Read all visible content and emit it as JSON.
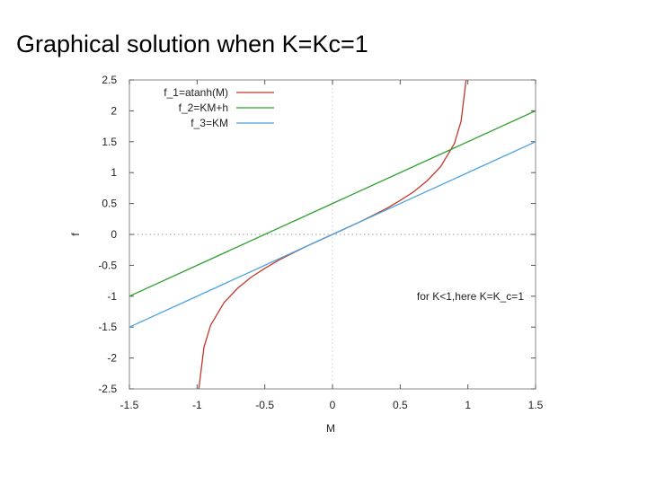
{
  "slide": {
    "title": "Graphical solution when K=Kc=1"
  },
  "chart_data": {
    "type": "line",
    "title": "",
    "xlabel": "M",
    "ylabel": "f",
    "xlim": [
      -1.5,
      1.5
    ],
    "ylim": [
      -2.5,
      2.5
    ],
    "xticks": [
      "-1.5",
      "-1",
      "-0.5",
      "0",
      "0.5",
      "1",
      "1.5"
    ],
    "xtick_values": [
      -1.5,
      -1,
      -0.5,
      0,
      0.5,
      1,
      1.5
    ],
    "yticks": [
      "2.5",
      "2",
      "1.5",
      "1",
      "0.5",
      "0",
      "-0.5",
      "-1",
      "-1.5",
      "-2",
      "-2.5"
    ],
    "ytick_values": [
      2.5,
      2,
      1.5,
      1,
      0.5,
      0,
      -0.5,
      -1,
      -1.5,
      -2,
      -2.5
    ],
    "grid": false,
    "zero_lines": true,
    "legend_position": "top-left",
    "series": [
      {
        "name": "f_1=atanh(M)",
        "color": "#c0392b",
        "x": [
          -0.987,
          -0.95,
          -0.9,
          -0.8,
          -0.7,
          -0.6,
          -0.5,
          -0.4,
          -0.3,
          -0.2,
          -0.1,
          0,
          0.1,
          0.2,
          0.3,
          0.4,
          0.5,
          0.6,
          0.7,
          0.8,
          0.9,
          0.95,
          0.987
        ],
        "y": [
          -2.5,
          -1.83,
          -1.47,
          -1.1,
          -0.87,
          -0.69,
          -0.55,
          -0.42,
          -0.31,
          -0.2,
          -0.1,
          0,
          0.1,
          0.2,
          0.31,
          0.42,
          0.55,
          0.69,
          0.87,
          1.1,
          1.47,
          1.83,
          2.5
        ]
      },
      {
        "name": "f_2=KM+h",
        "color": "#2ca02c",
        "x": [
          -1.5,
          1.5
        ],
        "y": [
          -1.0,
          2.0
        ]
      },
      {
        "name": "f_3=KM",
        "color": "#4aa3df",
        "x": [
          -1.5,
          1.5
        ],
        "y": [
          -1.5,
          1.5
        ]
      }
    ],
    "annotations": [
      {
        "text": "for K<1,here K=K_c=1",
        "position": "right-lower"
      }
    ]
  }
}
